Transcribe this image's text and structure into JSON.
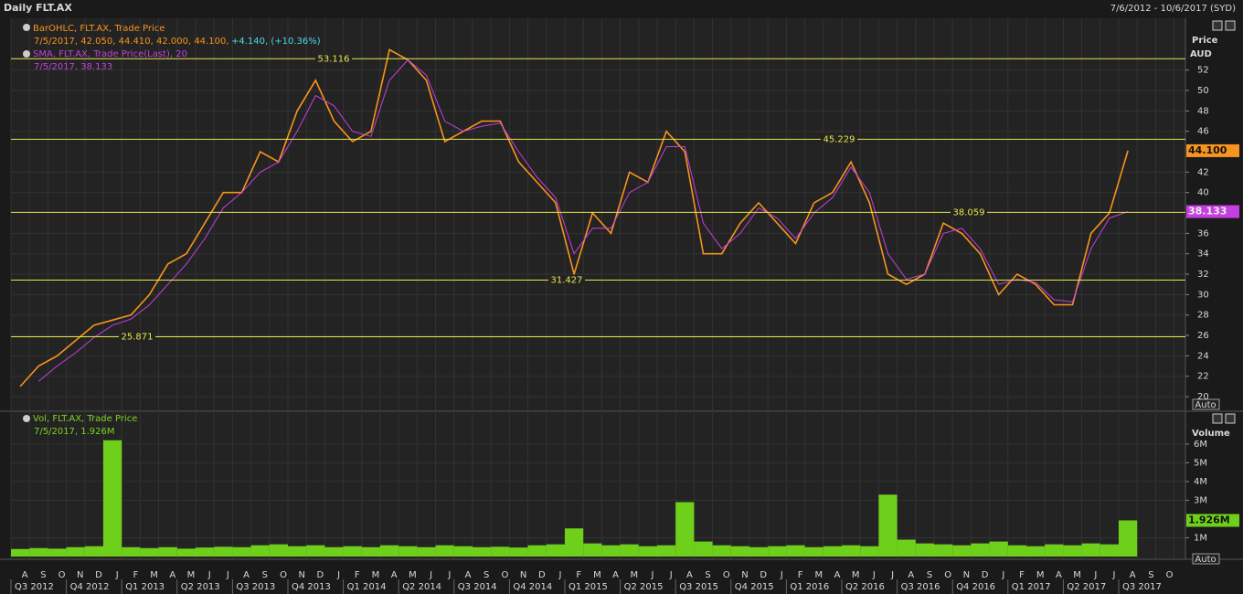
{
  "chart_data": [
    {
      "type": "line",
      "title": "Daily FLT.AX",
      "subtitle": "7/6/2012 - 10/6/2017 (SYD)",
      "axis_label": "Price",
      "unit": "AUD",
      "legend": {
        "ohlc_name": "BarOHLC, FLT.AX, Trade Price",
        "ohlc_values": "7/5/2017, 42.050, 44.410, 42.000, 44.100,",
        "ohlc_change": "+4.140, (+10.36%)",
        "sma_name": "SMA, FLT.AX, Trade Price(Last),  20",
        "sma_values": "7/5/2017, 38.133"
      },
      "series": [
        {
          "name": "BarOHLC",
          "color": "#f7941d",
          "values": [
            21,
            23,
            24,
            25.5,
            27,
            27.5,
            28,
            30,
            33,
            34,
            37,
            40,
            40,
            44,
            43,
            48,
            51,
            47,
            45,
            46,
            54,
            53,
            51,
            45,
            46,
            47,
            47,
            43,
            41,
            39,
            32,
            38,
            36,
            42,
            41,
            46,
            44,
            34,
            34,
            37,
            39,
            37,
            35,
            39,
            40,
            43,
            39,
            32,
            31,
            32,
            37,
            36,
            34,
            30,
            32,
            31,
            29,
            29,
            36,
            38,
            44.1,
            null,
            null,
            null
          ]
        },
        {
          "name": "SMA",
          "color": "#c53fe0",
          "values": [
            null,
            21.5,
            23,
            24.3,
            25.8,
            27,
            27.6,
            29,
            31,
            33,
            35.5,
            38.5,
            40,
            42,
            43,
            46,
            49.5,
            48.5,
            46,
            45.5,
            51,
            53,
            51.5,
            47,
            46,
            46.5,
            46.8,
            44,
            41.5,
            39.5,
            34,
            36.5,
            36.5,
            40,
            41,
            44.5,
            44.5,
            37,
            34.5,
            36,
            38.5,
            37.5,
            35.5,
            38,
            39.5,
            42.5,
            40,
            34,
            31.5,
            32,
            36,
            36.5,
            34.5,
            31,
            31.5,
            31.2,
            29.5,
            29.3,
            34.5,
            37.5,
            38.133,
            null,
            null,
            null
          ]
        }
      ],
      "levels": [
        53.116,
        45.229,
        38.059,
        31.427,
        25.871
      ],
      "last_price_label": {
        "value": 44.1,
        "label": "44.100"
      },
      "last_sma_label": {
        "value": 38.133,
        "label": "38.133"
      },
      "ylim": [
        18.75,
        56.9
      ],
      "yticks": [
        20,
        22,
        24,
        26,
        28,
        30,
        32,
        34,
        36,
        40,
        42,
        46,
        48,
        50,
        52
      ],
      "scale_mode": "Auto",
      "grid": true
    },
    {
      "type": "bar",
      "axis_label": "Volume",
      "legend": {
        "name": "Vol, FLT.AX, Trade Price",
        "values": "7/5/2017, 1.926M"
      },
      "color": "#6fd01c",
      "categories": [
        null,
        "A",
        "S",
        "O",
        "N",
        "D",
        "J",
        "F",
        "M",
        "A",
        "M",
        "J",
        "J",
        "A",
        "S",
        "O",
        "N",
        "D",
        "J",
        "F",
        "M",
        "A",
        "M",
        "J",
        "J",
        "A",
        "S",
        "O",
        "N",
        "D",
        "J",
        "F",
        "M",
        "A",
        "M",
        "J",
        "J",
        "A",
        "S",
        "O",
        "N",
        "D",
        "J",
        "F",
        "M",
        "A",
        "M",
        "J",
        "J",
        "A",
        "S",
        "O",
        "N",
        "D",
        "J",
        "F",
        "M",
        "A",
        "M",
        "J",
        "J",
        "A",
        "S",
        "O"
      ],
      "quarters": [
        "Q3 2012",
        "Q4 2012",
        "Q1 2013",
        "Q2 2013",
        "Q3 2013",
        "Q4 2013",
        "Q1 2014",
        "Q2 2014",
        "Q3 2014",
        "Q4 2014",
        "Q1 2015",
        "Q2 2015",
        "Q3 2015",
        "Q4 2015",
        "Q1 2016",
        "Q2 2016",
        "Q3 2016",
        "Q4 2016",
        "Q1 2017",
        "Q2 2017",
        "Q3 2017"
      ],
      "values": [
        400000,
        450000,
        420000,
        500000,
        550000,
        6200000,
        500000,
        450000,
        500000,
        420000,
        480000,
        520000,
        500000,
        600000,
        650000,
        550000,
        600000,
        500000,
        550000,
        500000,
        600000,
        550000,
        500000,
        600000,
        550000,
        500000,
        520000,
        480000,
        600000,
        650000,
        1500000,
        700000,
        600000,
        650000,
        550000,
        600000,
        2900000,
        800000,
        600000,
        550000,
        500000,
        550000,
        600000,
        500000,
        550000,
        600000,
        550000,
        3300000,
        900000,
        700000,
        650000,
        600000,
        700000,
        800000,
        600000,
        550000,
        650000,
        600000,
        700000,
        650000,
        1926000,
        null,
        null,
        null
      ],
      "last_volume_label": {
        "value": 1926000,
        "label": "1.926M"
      },
      "ylim": [
        0,
        7650000
      ],
      "yticks": [
        {
          "value": 1000000,
          "label": "1M"
        },
        {
          "value": 3000000,
          "label": "3M"
        },
        {
          "value": 4000000,
          "label": "4M"
        },
        {
          "value": 5000000,
          "label": "5M"
        },
        {
          "value": 6000000,
          "label": "6M"
        }
      ],
      "scale_mode": "Auto",
      "grid": true
    }
  ]
}
